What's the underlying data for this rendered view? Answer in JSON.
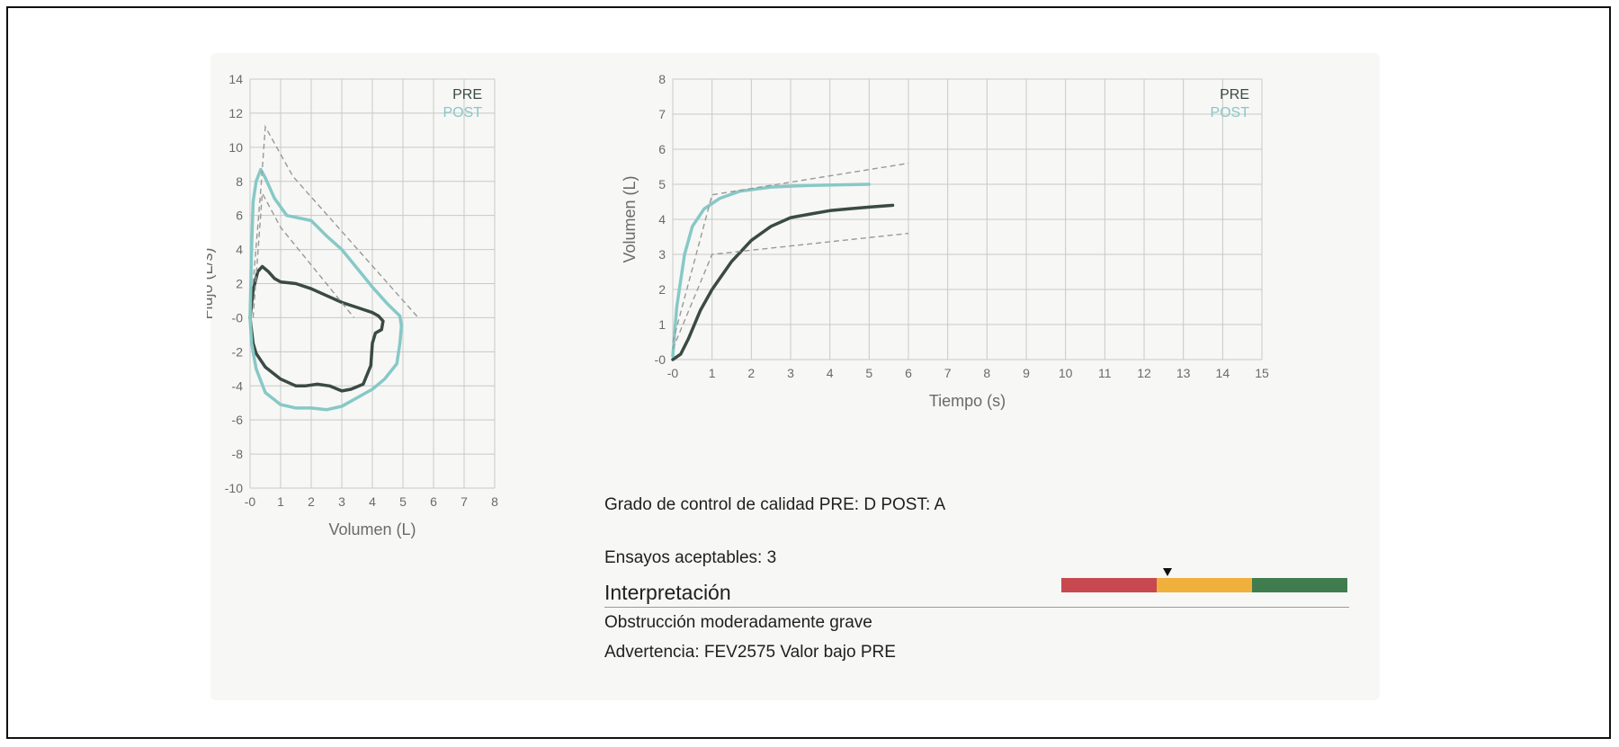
{
  "colors": {
    "pre": "#3a4a44",
    "post": "#86c9c6",
    "grid": "#c8c8c8",
    "axis_text": "#6a6a6a",
    "predicted": "#999999",
    "bar_red": "#c8484f",
    "bar_yellow": "#f0b03c",
    "bar_green": "#3f7d4f"
  },
  "chart_data": [
    {
      "type": "line",
      "xlabel": "Volumen (L)",
      "ylabel": "Flujo (L/s)",
      "xlim": [
        0,
        8
      ],
      "ylim": [
        -10,
        14
      ],
      "x_ticks": [
        "-0",
        "1",
        "2",
        "3",
        "4",
        "5",
        "6",
        "7",
        "8"
      ],
      "y_ticks": [
        "14",
        "12",
        "10",
        "8",
        "6",
        "4",
        "2",
        "-0",
        "-2",
        "-4",
        "-6",
        "-8",
        "-10"
      ],
      "grid": true,
      "legend": {
        "position": "top-right",
        "entries": [
          "PRE",
          "POST"
        ]
      },
      "series": [
        {
          "name": "PRE",
          "points": [
            [
              0,
              0
            ],
            [
              0.1,
              1.6
            ],
            [
              0.25,
              2.7
            ],
            [
              0.4,
              3.0
            ],
            [
              0.6,
              2.7
            ],
            [
              0.8,
              2.3
            ],
            [
              1,
              2.1
            ],
            [
              1.5,
              2.0
            ],
            [
              2,
              1.7
            ],
            [
              2.5,
              1.3
            ],
            [
              3,
              0.9
            ],
            [
              3.5,
              0.6
            ],
            [
              4,
              0.3
            ],
            [
              4.2,
              0.1
            ],
            [
              4.35,
              -0.2
            ],
            [
              4.3,
              -0.7
            ],
            [
              4.1,
              -0.9
            ],
            [
              4.0,
              -1.5
            ],
            [
              3.95,
              -2.8
            ],
            [
              3.7,
              -3.9
            ],
            [
              3.3,
              -4.2
            ],
            [
              3,
              -4.3
            ],
            [
              2.6,
              -4.0
            ],
            [
              2.2,
              -3.9
            ],
            [
              1.8,
              -4.0
            ],
            [
              1.5,
              -4.0
            ],
            [
              1,
              -3.6
            ],
            [
              0.5,
              -2.9
            ],
            [
              0.2,
              -2.1
            ],
            [
              0.1,
              -1.5
            ],
            [
              0,
              0
            ]
          ]
        },
        {
          "name": "POST",
          "points": [
            [
              0,
              0
            ],
            [
              0.05,
              4
            ],
            [
              0.1,
              6.8
            ],
            [
              0.2,
              8.0
            ],
            [
              0.35,
              8.7
            ],
            [
              0.5,
              8.2
            ],
            [
              0.8,
              7.0
            ],
            [
              1.2,
              6.0
            ],
            [
              2,
              5.7
            ],
            [
              2.5,
              4.8
            ],
            [
              3,
              4.0
            ],
            [
              3.5,
              2.9
            ],
            [
              4,
              1.8
            ],
            [
              4.5,
              0.8
            ],
            [
              4.9,
              0.1
            ],
            [
              4.95,
              -0.5
            ],
            [
              4.9,
              -1.5
            ],
            [
              4.8,
              -2.7
            ],
            [
              4.4,
              -3.6
            ],
            [
              4,
              -4.2
            ],
            [
              3.5,
              -4.7
            ],
            [
              3,
              -5.2
            ],
            [
              2.5,
              -5.4
            ],
            [
              2,
              -5.3
            ],
            [
              1.5,
              -5.3
            ],
            [
              1,
              -5.1
            ],
            [
              0.5,
              -4.4
            ],
            [
              0.2,
              -3.0
            ],
            [
              0.05,
              -1.5
            ],
            [
              0,
              0
            ]
          ]
        },
        {
          "name": "",
          "role": "predicted",
          "points": [
            [
              0.1,
              2
            ],
            [
              0.35,
              7.5
            ],
            [
              0.5,
              11.2
            ],
            [
              1.4,
              8.3
            ],
            [
              5.5,
              0
            ]
          ]
        },
        {
          "name": "",
          "role": "predicted",
          "points": [
            [
              0.1,
              0
            ],
            [
              0.4,
              7.3
            ],
            [
              1,
              5.3
            ],
            [
              3.4,
              0
            ]
          ]
        }
      ]
    },
    {
      "type": "line",
      "xlabel": "Tiempo (s)",
      "ylabel": "Volumen (L)",
      "xlim": [
        0,
        15
      ],
      "ylim": [
        0,
        8
      ],
      "x_ticks": [
        "-0",
        "1",
        "2",
        "3",
        "4",
        "5",
        "6",
        "7",
        "8",
        "9",
        "10",
        "11",
        "12",
        "13",
        "14",
        "15"
      ],
      "y_ticks": [
        "8",
        "7",
        "6",
        "5",
        "4",
        "3",
        "2",
        "1",
        "-0"
      ],
      "grid": true,
      "legend": {
        "position": "top-right",
        "entries": [
          "PRE",
          "POST"
        ]
      },
      "series": [
        {
          "name": "PRE",
          "points": [
            [
              0,
              0
            ],
            [
              0.2,
              0.15
            ],
            [
              0.4,
              0.6
            ],
            [
              0.7,
              1.4
            ],
            [
              1,
              2.0
            ],
            [
              1.5,
              2.8
            ],
            [
              2,
              3.4
            ],
            [
              2.5,
              3.8
            ],
            [
              3,
              4.05
            ],
            [
              3.5,
              4.15
            ],
            [
              4,
              4.25
            ],
            [
              4.5,
              4.3
            ],
            [
              5,
              4.35
            ],
            [
              5.6,
              4.4
            ]
          ]
        },
        {
          "name": "POST",
          "points": [
            [
              0,
              0.1
            ],
            [
              0.1,
              1.5
            ],
            [
              0.3,
              3.0
            ],
            [
              0.5,
              3.8
            ],
            [
              0.8,
              4.3
            ],
            [
              1.2,
              4.6
            ],
            [
              1.7,
              4.8
            ],
            [
              2.5,
              4.92
            ],
            [
              3.5,
              4.97
            ],
            [
              5,
              5.0
            ]
          ]
        },
        {
          "name": "",
          "role": "predicted",
          "points": [
            [
              0,
              0.5
            ],
            [
              1,
              4.7
            ],
            [
              6,
              5.6
            ]
          ]
        },
        {
          "name": "",
          "role": "predicted",
          "points": [
            [
              0,
              0.3
            ],
            [
              1,
              3.0
            ],
            [
              6,
              3.6
            ]
          ]
        }
      ]
    }
  ],
  "info": {
    "quality_grade": "Grado de control de calidad PRE: D POST: A",
    "acceptable_trials": "Ensayos aceptables: 3",
    "interpretation_title": "Interpretación",
    "interpretation_result": "Obstrucción moderadamente grave",
    "warning": "Advertencia: FEV2575 Valor bajo PRE"
  },
  "severity": {
    "segments": [
      "bar_red",
      "bar_yellow",
      "bar_green"
    ],
    "marker_fraction": 0.37
  }
}
